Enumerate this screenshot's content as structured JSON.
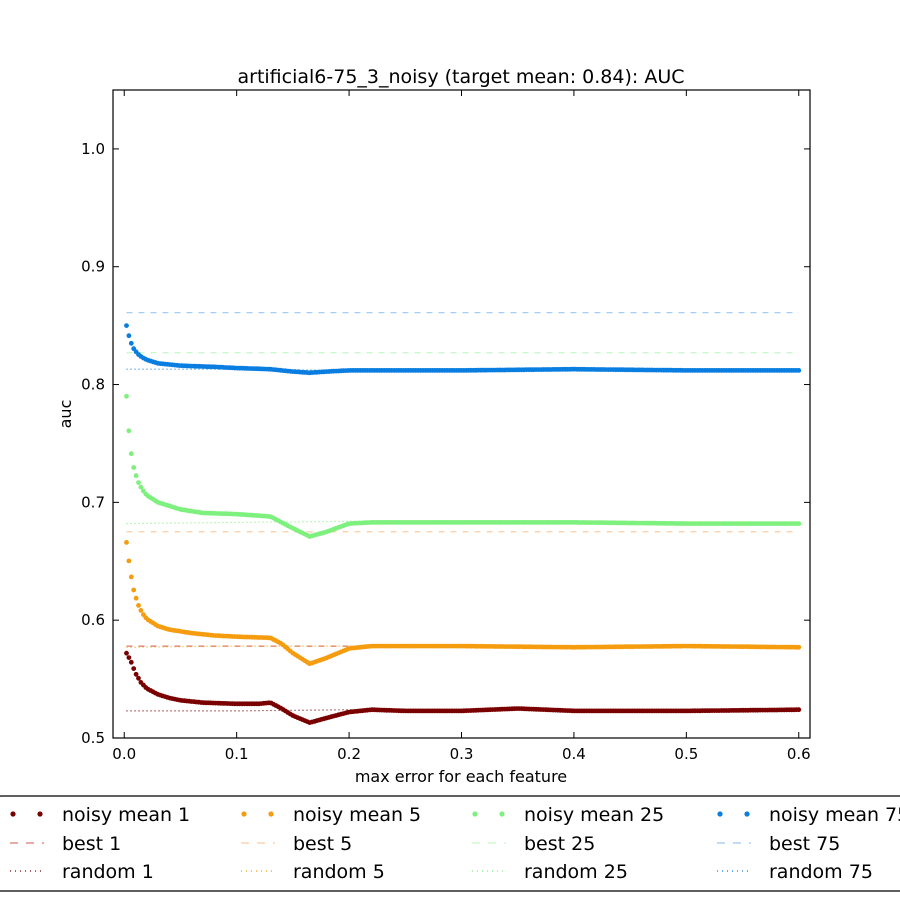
{
  "chart_data": {
    "type": "scatter",
    "title": "artificial6-75_3_noisy (target mean: 0.84): AUC",
    "xlabel": "max error for each feature",
    "ylabel": "auc",
    "xlim": [
      -0.01,
      0.61
    ],
    "ylim": [
      0.5,
      1.05
    ],
    "x_ticks": [
      0.0,
      0.1,
      0.2,
      0.3,
      0.4,
      0.5,
      0.6
    ],
    "x_tick_labels": [
      "0.0",
      "0.1",
      "0.2",
      "0.3",
      "0.4",
      "0.5",
      "0.6"
    ],
    "y_ticks": [
      0.5,
      0.6,
      0.7,
      0.8,
      0.9,
      1.0
    ],
    "y_tick_labels": [
      "0.5",
      "0.6",
      "0.7",
      "0.8",
      "0.9",
      "1.0"
    ],
    "grid": false,
    "legend_placement": "bottom",
    "x_range": [
      0.002,
      0.6
    ],
    "num_points": 280,
    "series": [
      {
        "name": "noisy mean 1",
        "style": "dots",
        "color": "#7a0000",
        "profile": [
          [
            0.002,
            0.572
          ],
          [
            0.006,
            0.565
          ],
          [
            0.01,
            0.555
          ],
          [
            0.015,
            0.547
          ],
          [
            0.02,
            0.542
          ],
          [
            0.03,
            0.537
          ],
          [
            0.04,
            0.534
          ],
          [
            0.05,
            0.532
          ],
          [
            0.07,
            0.53
          ],
          [
            0.1,
            0.529
          ],
          [
            0.12,
            0.529
          ],
          [
            0.13,
            0.53
          ],
          [
            0.14,
            0.525
          ],
          [
            0.15,
            0.519
          ],
          [
            0.165,
            0.513
          ],
          [
            0.18,
            0.517
          ],
          [
            0.2,
            0.522
          ],
          [
            0.22,
            0.524
          ],
          [
            0.25,
            0.523
          ],
          [
            0.3,
            0.523
          ],
          [
            0.35,
            0.525
          ],
          [
            0.4,
            0.523
          ],
          [
            0.5,
            0.523
          ],
          [
            0.6,
            0.524
          ]
        ]
      },
      {
        "name": "best 1",
        "style": "dashed",
        "color": "#d9776e",
        "value": 0.578
      },
      {
        "name": "random 1",
        "style": "dotted",
        "color": "#7a0000",
        "profile": [
          [
            0.002,
            0.523
          ],
          [
            0.1,
            0.523
          ],
          [
            0.2,
            0.524
          ],
          [
            0.6,
            0.524
          ]
        ]
      },
      {
        "name": "noisy mean 5",
        "style": "dots",
        "color": "#f59c0f",
        "profile": [
          [
            0.002,
            0.666
          ],
          [
            0.005,
            0.644
          ],
          [
            0.008,
            0.627
          ],
          [
            0.012,
            0.614
          ],
          [
            0.016,
            0.606
          ],
          [
            0.02,
            0.601
          ],
          [
            0.03,
            0.595
          ],
          [
            0.04,
            0.592
          ],
          [
            0.06,
            0.589
          ],
          [
            0.08,
            0.587
          ],
          [
            0.1,
            0.586
          ],
          [
            0.13,
            0.585
          ],
          [
            0.14,
            0.58
          ],
          [
            0.15,
            0.572
          ],
          [
            0.165,
            0.563
          ],
          [
            0.18,
            0.568
          ],
          [
            0.2,
            0.576
          ],
          [
            0.22,
            0.578
          ],
          [
            0.3,
            0.578
          ],
          [
            0.4,
            0.577
          ],
          [
            0.5,
            0.578
          ],
          [
            0.6,
            0.577
          ]
        ]
      },
      {
        "name": "best 5",
        "style": "dashed",
        "color": "#fbc99a",
        "value": 0.675
      },
      {
        "name": "random 5",
        "style": "dotted",
        "color": "#f59c0f",
        "profile": [
          [
            0.002,
            0.577
          ],
          [
            0.1,
            0.578
          ],
          [
            0.2,
            0.578
          ],
          [
            0.6,
            0.578
          ]
        ]
      },
      {
        "name": "noisy mean 25",
        "style": "dots",
        "color": "#7ef07e",
        "profile": [
          [
            0.002,
            0.79
          ],
          [
            0.005,
            0.749
          ],
          [
            0.008,
            0.731
          ],
          [
            0.012,
            0.718
          ],
          [
            0.016,
            0.711
          ],
          [
            0.02,
            0.706
          ],
          [
            0.03,
            0.7
          ],
          [
            0.04,
            0.697
          ],
          [
            0.05,
            0.694
          ],
          [
            0.07,
            0.691
          ],
          [
            0.1,
            0.69
          ],
          [
            0.13,
            0.688
          ],
          [
            0.14,
            0.683
          ],
          [
            0.15,
            0.678
          ],
          [
            0.165,
            0.671
          ],
          [
            0.18,
            0.675
          ],
          [
            0.2,
            0.682
          ],
          [
            0.22,
            0.683
          ],
          [
            0.3,
            0.683
          ],
          [
            0.4,
            0.683
          ],
          [
            0.5,
            0.682
          ],
          [
            0.6,
            0.682
          ]
        ]
      },
      {
        "name": "best 25",
        "style": "dashed",
        "color": "#c6f6c6",
        "value": 0.827
      },
      {
        "name": "random 25",
        "style": "dotted",
        "color": "#7ef07e",
        "profile": [
          [
            0.002,
            0.682
          ],
          [
            0.1,
            0.683
          ],
          [
            0.2,
            0.684
          ],
          [
            0.6,
            0.683
          ]
        ]
      },
      {
        "name": "noisy mean 75",
        "style": "dots",
        "color": "#0a7ee0",
        "profile": [
          [
            0.002,
            0.85
          ],
          [
            0.005,
            0.838
          ],
          [
            0.008,
            0.831
          ],
          [
            0.012,
            0.826
          ],
          [
            0.016,
            0.823
          ],
          [
            0.02,
            0.821
          ],
          [
            0.03,
            0.818
          ],
          [
            0.05,
            0.816
          ],
          [
            0.08,
            0.815
          ],
          [
            0.1,
            0.814
          ],
          [
            0.13,
            0.813
          ],
          [
            0.15,
            0.811
          ],
          [
            0.165,
            0.81
          ],
          [
            0.18,
            0.811
          ],
          [
            0.2,
            0.812
          ],
          [
            0.3,
            0.812
          ],
          [
            0.4,
            0.813
          ],
          [
            0.5,
            0.812
          ],
          [
            0.6,
            0.812
          ]
        ]
      },
      {
        "name": "best 75",
        "style": "dashed",
        "color": "#9cc7ef",
        "value": 0.861
      },
      {
        "name": "random 75",
        "style": "dotted",
        "color": "#0a7ee0",
        "profile": [
          [
            0.002,
            0.813
          ],
          [
            0.1,
            0.813
          ],
          [
            0.2,
            0.812
          ],
          [
            0.6,
            0.812
          ]
        ]
      }
    ]
  }
}
